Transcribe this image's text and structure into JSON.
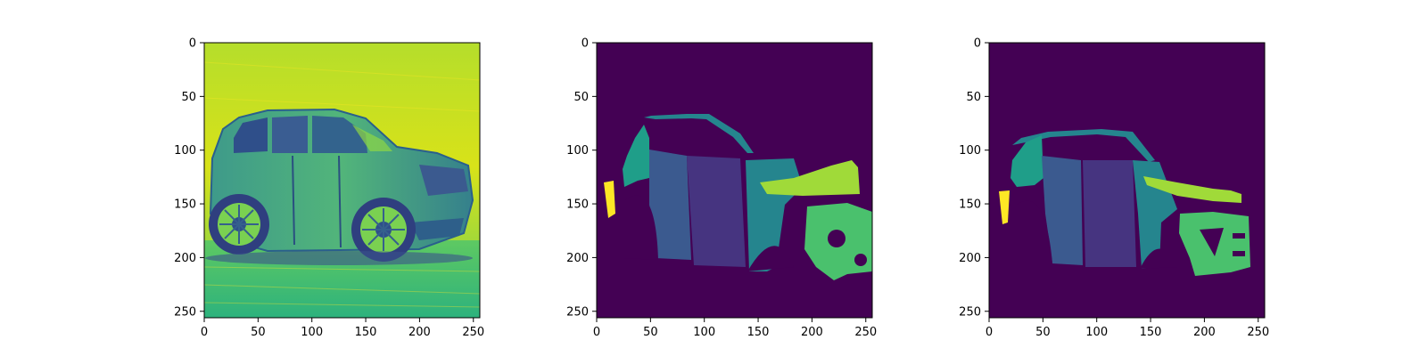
{
  "chart_data": [
    {
      "type": "heatmap",
      "content": "grayscale car photograph rendered with viridis colormap",
      "colormap": "viridis",
      "xlim": [
        0,
        256
      ],
      "ylim": [
        256,
        0
      ],
      "xticks": [
        0,
        50,
        100,
        150,
        200,
        250
      ],
      "yticks": [
        0,
        50,
        100,
        150,
        200,
        250
      ],
      "xtick_labels": [
        "0",
        "50",
        "100",
        "150",
        "200",
        "250"
      ],
      "ytick_labels": [
        "0",
        "50",
        "100",
        "150",
        "200",
        "250"
      ],
      "grid": false
    },
    {
      "type": "heatmap",
      "content": "segmentation mask of car parts (ground truth)",
      "colormap": "viridis",
      "xlim": [
        0,
        256
      ],
      "ylim": [
        256,
        0
      ],
      "xticks": [
        0,
        50,
        100,
        150,
        200,
        250
      ],
      "yticks": [
        0,
        50,
        100,
        150,
        200,
        250
      ],
      "xtick_labels": [
        "0",
        "50",
        "100",
        "150",
        "200",
        "250"
      ],
      "ytick_labels": [
        "0",
        "50",
        "100",
        "150",
        "200",
        "250"
      ],
      "grid": false
    },
    {
      "type": "heatmap",
      "content": "segmentation mask of car parts (prediction)",
      "colormap": "viridis",
      "xlim": [
        0,
        256
      ],
      "ylim": [
        256,
        0
      ],
      "xticks": [
        0,
        50,
        100,
        150,
        200,
        250
      ],
      "yticks": [
        0,
        50,
        100,
        150,
        200,
        250
      ],
      "xtick_labels": [
        "0",
        "50",
        "100",
        "150",
        "200",
        "250"
      ],
      "ytick_labels": [
        "0",
        "50",
        "100",
        "150",
        "200",
        "250"
      ],
      "grid": false
    }
  ],
  "colors": {
    "background_class": "#440154",
    "class_blue": "#3b5a8f",
    "class_purple": "#463480",
    "class_teal": "#1f9e89",
    "class_teal_dark": "#25858e",
    "class_green": "#4ac16d",
    "class_lime": "#a0da39",
    "class_yellow": "#fde725",
    "photo_bg_light": "#c8e03a",
    "photo_bg_mid": "#7ad151",
    "photo_dark": "#2f5f8a"
  }
}
